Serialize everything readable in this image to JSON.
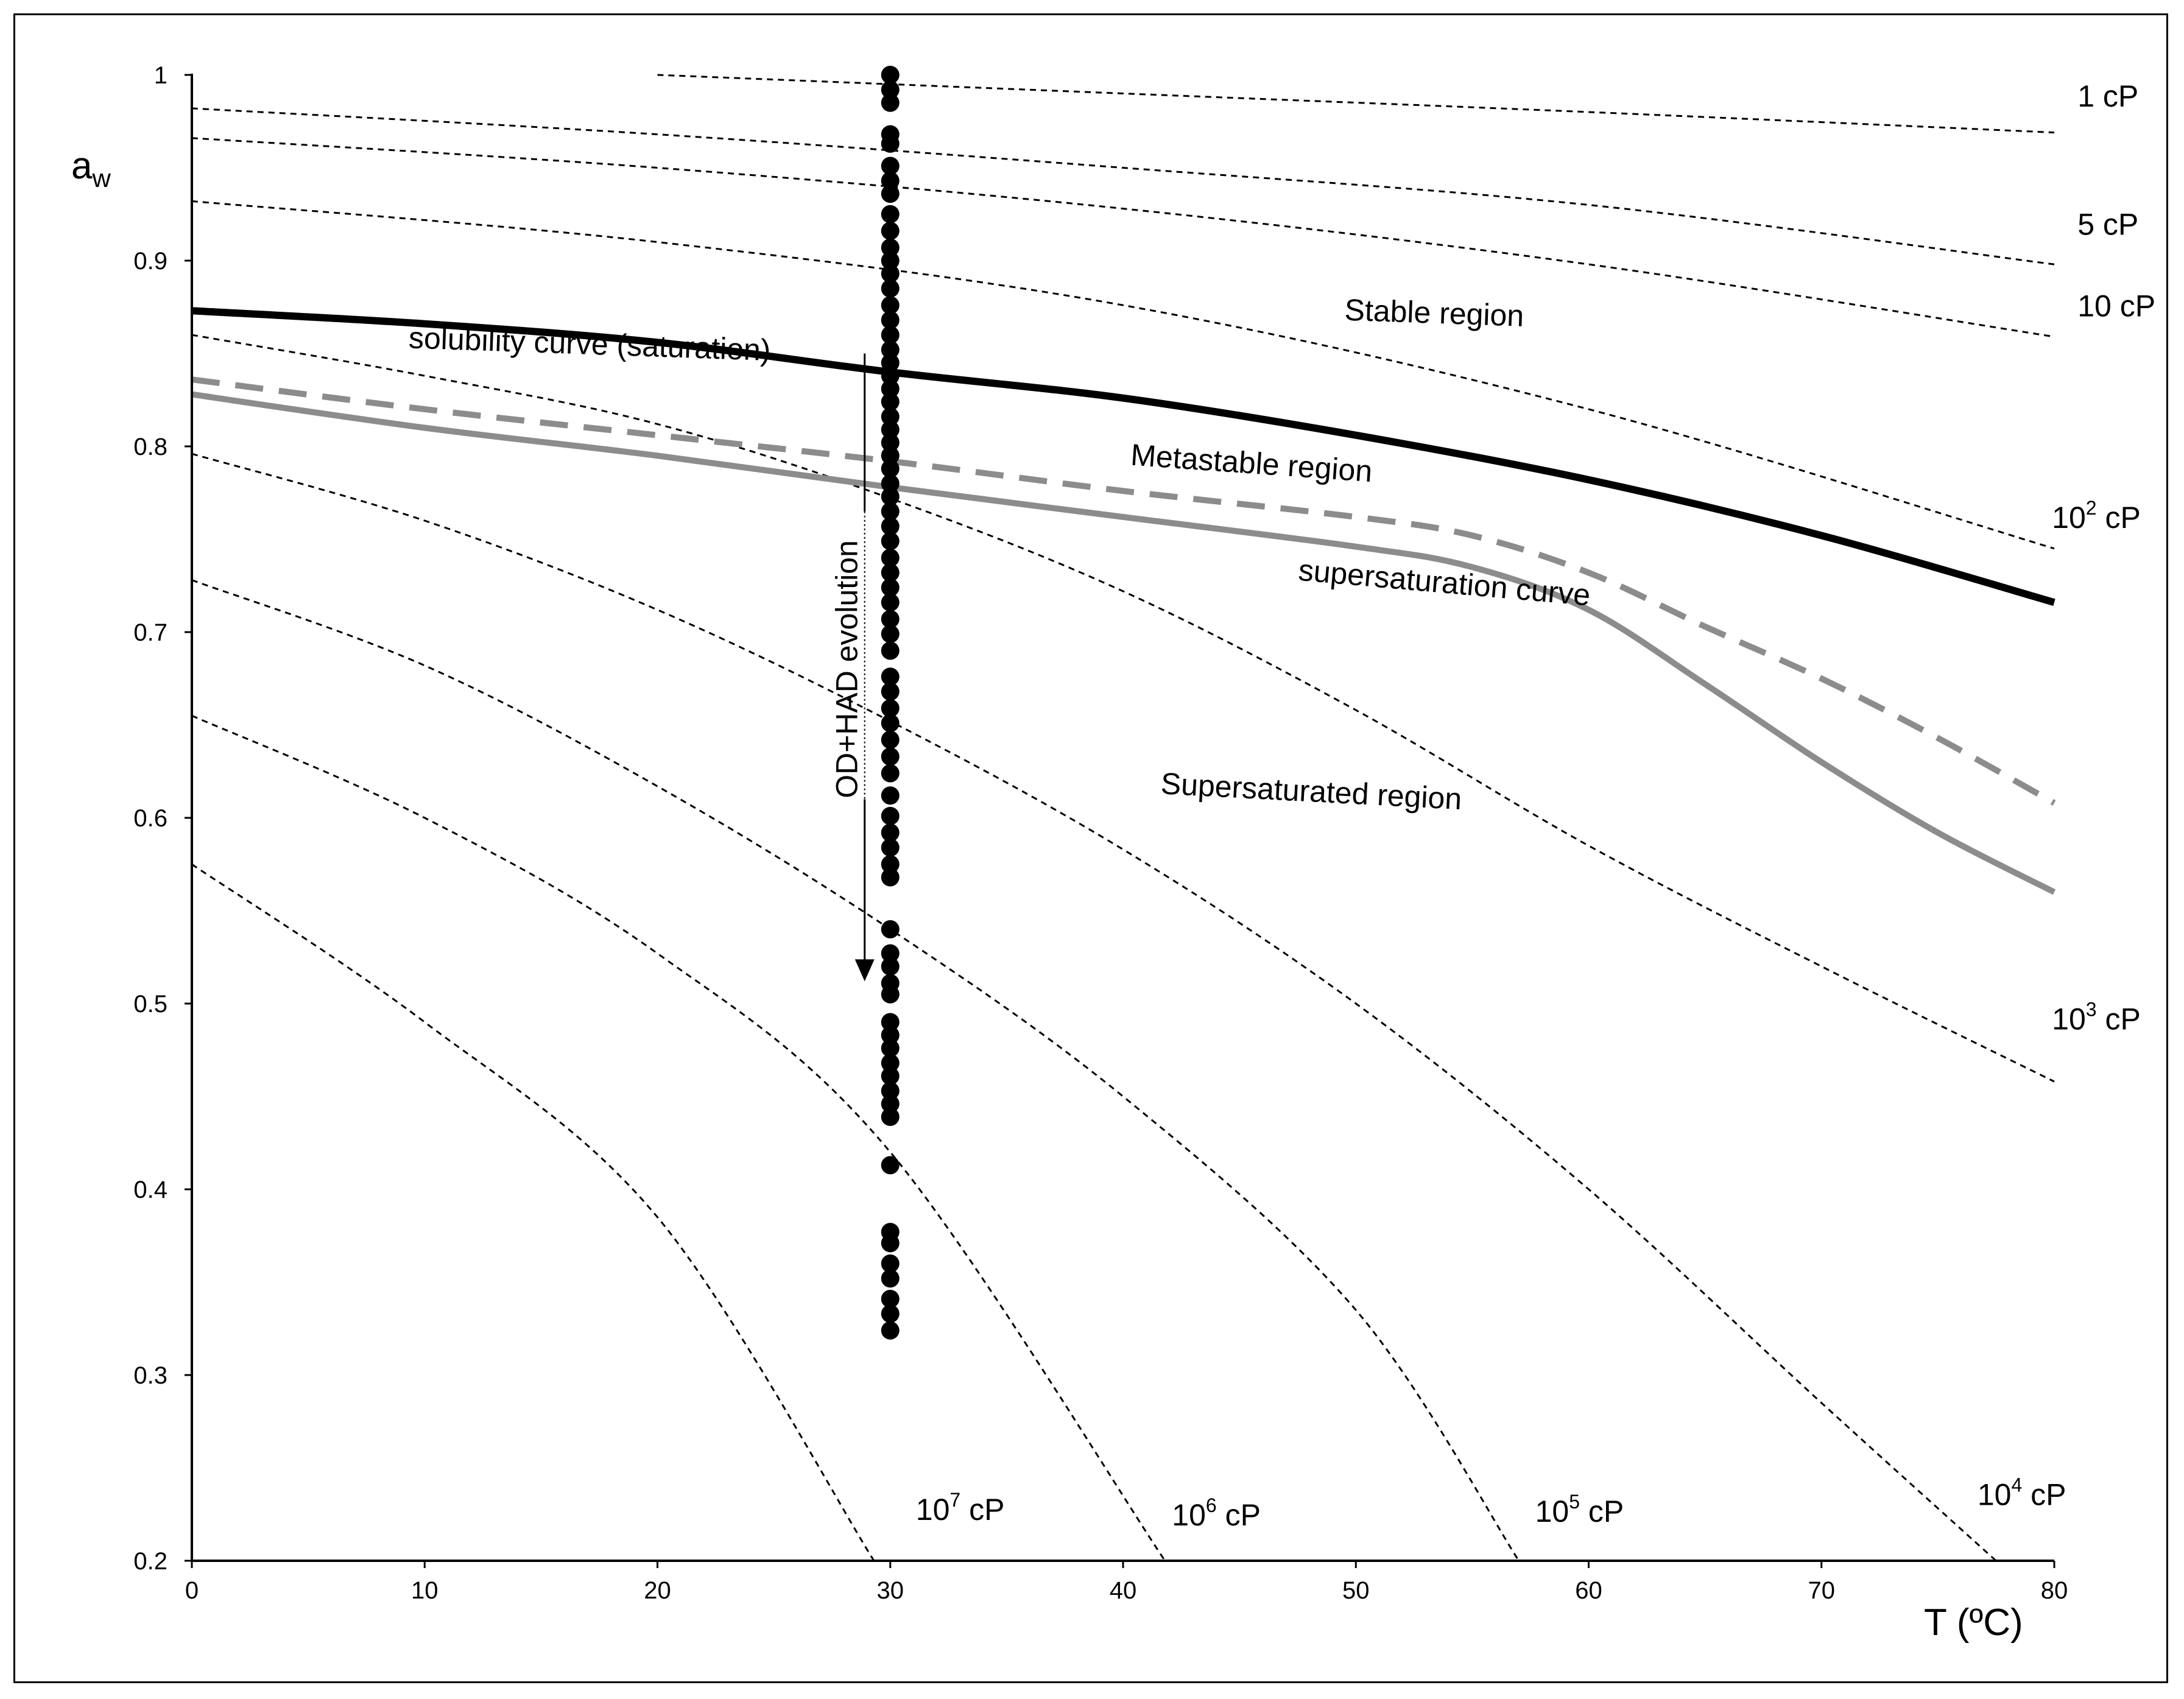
{
  "chart_data": {
    "type": "line",
    "title": "",
    "xlabel": "T (ºC)",
    "ylabel": "a",
    "ylabel_sub": "w",
    "xlim": [
      0,
      80
    ],
    "ylim": [
      0.2,
      1.0
    ],
    "x_ticks": [
      0,
      10,
      20,
      30,
      40,
      50,
      60,
      70,
      80
    ],
    "y_ticks": [
      0.2,
      0.3,
      0.4,
      0.5,
      0.6,
      0.7,
      0.8,
      0.9,
      1.0
    ],
    "y_tick_labels": [
      "0.2",
      "0.3",
      "0.4",
      "0.5",
      "0.6",
      "0.7",
      "0.8",
      "0.9",
      "1"
    ],
    "grid": false,
    "iso_viscosity_curves": [
      {
        "label": "1",
        "label_sup": "",
        "unit": "cP",
        "points": [
          [
            20,
            1.0
          ],
          [
            40,
            0.99
          ],
          [
            60,
            0.98
          ],
          [
            80,
            0.969
          ]
        ]
      },
      {
        "label": "",
        "label_sup": "",
        "unit": "",
        "points": [
          [
            0,
            0.982
          ],
          [
            20,
            0.968
          ],
          [
            40,
            0.95
          ],
          [
            60,
            0.93
          ],
          [
            80,
            0.898
          ]
        ]
      },
      {
        "label": "5",
        "label_sup": "",
        "unit": "cP",
        "points": [
          [
            0,
            0.966
          ],
          [
            20,
            0.95
          ],
          [
            40,
            0.928
          ],
          [
            60,
            0.898
          ],
          [
            80,
            0.859
          ]
        ]
      },
      {
        "label": "10",
        "label_sup": "",
        "unit": "cP",
        "points": [
          [
            0,
            0.932
          ],
          [
            20,
            0.91
          ],
          [
            40,
            0.876
          ],
          [
            60,
            0.82
          ],
          [
            80,
            0.745
          ]
        ]
      },
      {
        "label": "10",
        "label_sup": "2",
        "unit": "cP",
        "points": [
          [
            0,
            0.86
          ],
          [
            10,
            0.838
          ],
          [
            20,
            0.812
          ],
          [
            30,
            0.772
          ],
          [
            40,
            0.722
          ],
          [
            50,
            0.658
          ],
          [
            60,
            0.585
          ],
          [
            70,
            0.52
          ],
          [
            80,
            0.458
          ]
        ]
      },
      {
        "label": "10",
        "label_sup": "3",
        "unit": "cP",
        "points": [
          [
            0,
            0.796
          ],
          [
            10,
            0.76
          ],
          [
            20,
            0.712
          ],
          [
            30,
            0.652
          ],
          [
            40,
            0.583
          ],
          [
            50,
            0.5
          ],
          [
            60,
            0.4
          ],
          [
            70,
            0.285
          ],
          [
            77.5,
            0.2
          ]
        ]
      },
      {
        "label": "10",
        "label_sup": "4",
        "unit": "cP",
        "points": [
          [
            0,
            0.728
          ],
          [
            10,
            0.682
          ],
          [
            20,
            0.617
          ],
          [
            30,
            0.54
          ],
          [
            40,
            0.45
          ],
          [
            50,
            0.335
          ],
          [
            57,
            0.2
          ]
        ]
      },
      {
        "label": "10",
        "label_sup": "5",
        "unit": "cP",
        "points": [
          [
            0,
            0.655
          ],
          [
            10,
            0.6
          ],
          [
            20,
            0.527
          ],
          [
            30,
            0.42
          ],
          [
            41.8,
            0.2
          ]
        ]
      },
      {
        "label": "10",
        "label_sup": "6",
        "unit": "cP",
        "points": [
          [
            0,
            0.575
          ],
          [
            10,
            0.49
          ],
          [
            20,
            0.385
          ],
          [
            29.3,
            0.2
          ]
        ]
      }
    ],
    "iso_labels": [
      {
        "base": "1",
        "sup": "",
        "unit": " cP",
        "x": 81,
        "y": 0.983
      },
      {
        "base": "5",
        "sup": "",
        "unit": " cP",
        "x": 81,
        "y": 0.914
      },
      {
        "base": "10",
        "sup": "",
        "unit": " cP",
        "x": 81,
        "y": 0.87
      },
      {
        "base": "10",
        "sup": "2",
        "unit": " cP",
        "x": 79.9,
        "y": 0.756
      },
      {
        "base": "10",
        "sup": "3",
        "unit": " cP",
        "x": 79.9,
        "y": 0.486
      },
      {
        "base": "10",
        "sup": "4",
        "unit": " cP",
        "x": 76.7,
        "y": 0.23
      },
      {
        "base": "10",
        "sup": "5",
        "unit": " cP",
        "x": 57.7,
        "y": 0.221
      },
      {
        "base": "10",
        "sup": "6",
        "unit": " cP",
        "x": 42.1,
        "y": 0.219
      },
      {
        "base": "10",
        "sup": "7",
        "unit": " cP",
        "x": 31.1,
        "y": 0.222
      }
    ],
    "series": [
      {
        "name": "solubility curve (saturation)",
        "style": "solid",
        "color": "#000000",
        "points": [
          [
            0,
            0.873
          ],
          [
            10,
            0.866
          ],
          [
            20,
            0.856
          ],
          [
            30,
            0.84
          ],
          [
            40,
            0.826
          ],
          [
            50,
            0.806
          ],
          [
            60,
            0.782
          ],
          [
            70,
            0.752
          ],
          [
            80,
            0.716
          ]
        ]
      },
      {
        "name": "",
        "style": "dashed",
        "color": "#8c8c8c",
        "points": [
          [
            0,
            0.836
          ],
          [
            10,
            0.82
          ],
          [
            20,
            0.806
          ],
          [
            30,
            0.792
          ],
          [
            40,
            0.776
          ],
          [
            50,
            0.762
          ],
          [
            55,
            0.752
          ],
          [
            60,
            0.732
          ],
          [
            65,
            0.703
          ],
          [
            70,
            0.675
          ],
          [
            75,
            0.643
          ],
          [
            80,
            0.608
          ]
        ]
      },
      {
        "name": "supersaturation curve",
        "style": "solid",
        "color": "#8c8c8c",
        "points": [
          [
            0,
            0.828
          ],
          [
            10,
            0.81
          ],
          [
            20,
            0.795
          ],
          [
            30,
            0.778
          ],
          [
            40,
            0.762
          ],
          [
            50,
            0.746
          ],
          [
            55,
            0.735
          ],
          [
            60,
            0.712
          ],
          [
            65,
            0.672
          ],
          [
            70,
            0.63
          ],
          [
            75,
            0.592
          ],
          [
            80,
            0.56
          ]
        ]
      }
    ],
    "scatter": {
      "x": 30,
      "y": [
        1.0,
        0.992,
        0.985,
        0.968,
        0.963,
        0.951,
        0.943,
        0.936,
        0.925,
        0.916,
        0.907,
        0.9,
        0.893,
        0.885,
        0.876,
        0.868,
        0.86,
        0.852,
        0.845,
        0.838,
        0.831,
        0.824,
        0.816,
        0.809,
        0.802,
        0.795,
        0.788,
        0.78,
        0.773,
        0.765,
        0.757,
        0.749,
        0.74,
        0.732,
        0.724,
        0.716,
        0.707,
        0.699,
        0.69,
        0.676,
        0.668,
        0.659,
        0.651,
        0.642,
        0.633,
        0.624,
        0.612,
        0.601,
        0.592,
        0.584,
        0.575,
        0.568,
        0.54,
        0.527,
        0.52,
        0.511,
        0.505,
        0.49,
        0.483,
        0.476,
        0.468,
        0.461,
        0.453,
        0.446,
        0.439,
        0.413,
        0.377,
        0.371,
        0.36,
        0.352,
        0.341,
        0.333,
        0.324
      ]
    },
    "arrow": {
      "label": "OD+HAD evolution",
      "x": 28.9,
      "y_start": 0.85,
      "y_end": 0.512
    },
    "annotations": [
      {
        "text": "Stable region",
        "x": 49.5,
        "y": 0.868,
        "rotate": 2
      },
      {
        "text": "Metastable region",
        "x": 40.3,
        "y": 0.79,
        "rotate": 4
      },
      {
        "text": "supersaturation curve",
        "x": 47.5,
        "y": 0.728,
        "rotate": 5
      },
      {
        "text": "Supersaturated region",
        "x": 41.6,
        "y": 0.613,
        "rotate": 3
      },
      {
        "text": "solubility curve (saturation)",
        "x": 9.3,
        "y": 0.853,
        "rotate": 2
      }
    ]
  }
}
